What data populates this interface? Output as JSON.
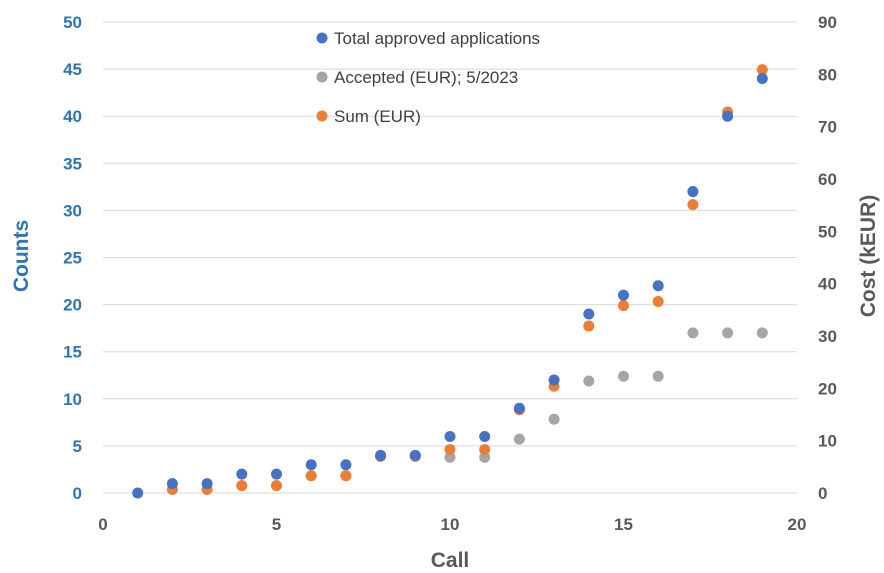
{
  "chart_data": {
    "type": "scatter",
    "xlabel": "Call",
    "ylabel_left": "Counts",
    "ylabel_right": "Cost (kEUR)",
    "xlim": [
      0,
      20
    ],
    "ylim_left": [
      0,
      50
    ],
    "ylim_right": [
      0,
      90
    ],
    "x_ticks": [
      "0",
      "5",
      "10",
      "15",
      "20"
    ],
    "y_left_ticks": [
      "0",
      "5",
      "10",
      "15",
      "20",
      "25",
      "30",
      "35",
      "40",
      "45",
      "50"
    ],
    "y_right_ticks": [
      "0",
      "10",
      "20",
      "30",
      "40",
      "50",
      "60",
      "70",
      "80",
      "90"
    ],
    "grid": "horizontal",
    "legend_position": "top-center",
    "series": [
      {
        "name": "Total approved applications",
        "axis": "left",
        "color": "#4472C4",
        "x": [
          1,
          2,
          3,
          4,
          5,
          6,
          7,
          8,
          9,
          10,
          11,
          12,
          13,
          14,
          15,
          16,
          17,
          18,
          19
        ],
        "values": [
          0,
          1,
          1,
          2,
          2,
          3,
          3,
          4,
          4,
          6,
          6,
          9,
          12,
          19,
          21,
          22,
          32,
          40,
          44
        ]
      },
      {
        "name": "Accepted (EUR); 5/2023",
        "axis": "right",
        "color": "#A5A5A5",
        "x": [
          2,
          3,
          4,
          5,
          6,
          7,
          8,
          9,
          10,
          11,
          12,
          13,
          14,
          15,
          16,
          17,
          18,
          19
        ],
        "values": [
          0.7,
          0.7,
          1.4,
          1.4,
          3.3,
          3.3,
          7,
          7,
          6.8,
          6.8,
          10.3,
          14.1,
          21.4,
          22.3,
          22.3,
          30.6,
          30.6,
          30.6
        ]
      },
      {
        "name": "Sum (EUR)",
        "axis": "right",
        "color": "#ED7D31",
        "x": [
          2,
          3,
          4,
          5,
          6,
          7,
          8,
          9,
          10,
          11,
          12,
          13,
          14,
          15,
          16,
          17,
          18,
          19
        ],
        "values": [
          0.7,
          0.7,
          1.4,
          1.4,
          3.3,
          3.3,
          7,
          7,
          8.3,
          8.3,
          15.9,
          20.4,
          31.9,
          35.8,
          36.6,
          55.1,
          72.8,
          80.9
        ]
      }
    ]
  }
}
